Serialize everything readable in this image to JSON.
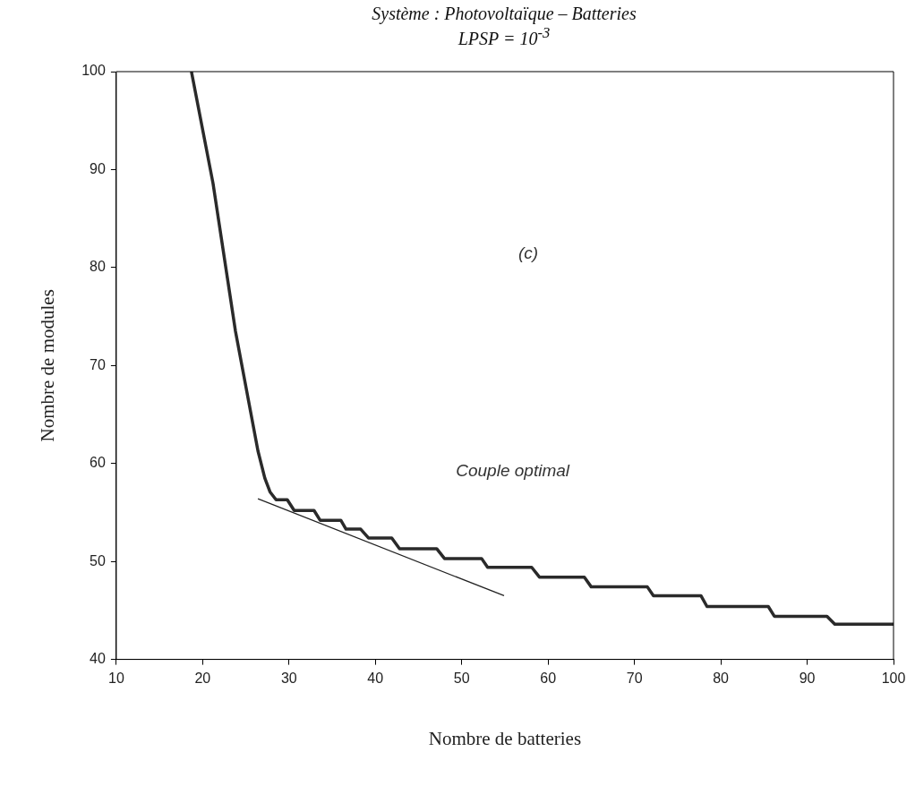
{
  "chart_data": {
    "type": "line",
    "title": "Système : Photovoltaïque – Batteries",
    "subtitle": "LPSP = 10$^{-3}$",
    "xlabel": "Nombre de batteries",
    "ylabel": "Nombre de modules",
    "xlim": [
      10,
      100
    ],
    "xticks": [
      10,
      20,
      30,
      40,
      50,
      60,
      70,
      80,
      90,
      100
    ],
    "ylim": [
      40,
      100
    ],
    "yticks": [
      40,
      50,
      60,
      70,
      80,
      90,
      100
    ],
    "grid": false,
    "legend": false,
    "marker": "none",
    "line_style": "solid",
    "series": [
      {
        "color": "#2a2a2a",
        "x": [
          18.7,
          21.2,
          23.8,
          26.4,
          27.2,
          27.8,
          28.5,
          29.8,
          30.6,
          32.9,
          33.6,
          36.0,
          36.6,
          38.3,
          39.2,
          41.9,
          42.8,
          47.1,
          48.0,
          52.3,
          53.0,
          58.1,
          59.0,
          64.2,
          65.0,
          71.5,
          72.2,
          77.7,
          78.4,
          85.5,
          86.2,
          92.3,
          93.2,
          100
        ],
        "values": [
          100,
          88.6,
          73.5,
          61.3,
          58.5,
          57.1,
          56.3,
          56.3,
          55.2,
          55.2,
          54.2,
          54.2,
          53.3,
          53.3,
          52.4,
          52.4,
          51.3,
          51.3,
          50.3,
          50.3,
          49.4,
          49.4,
          48.4,
          48.4,
          47.4,
          47.4,
          46.5,
          46.5,
          45.4,
          45.4,
          44.4,
          44.4,
          43.6,
          43.6
        ]
      },
      {
        "color": "#222222",
        "x": [
          26.4,
          54.9
        ],
        "values": [
          56.4,
          46.5
        ]
      }
    ],
    "annotations": [
      "(c)",
      "Couple optimal"
    ]
  }
}
